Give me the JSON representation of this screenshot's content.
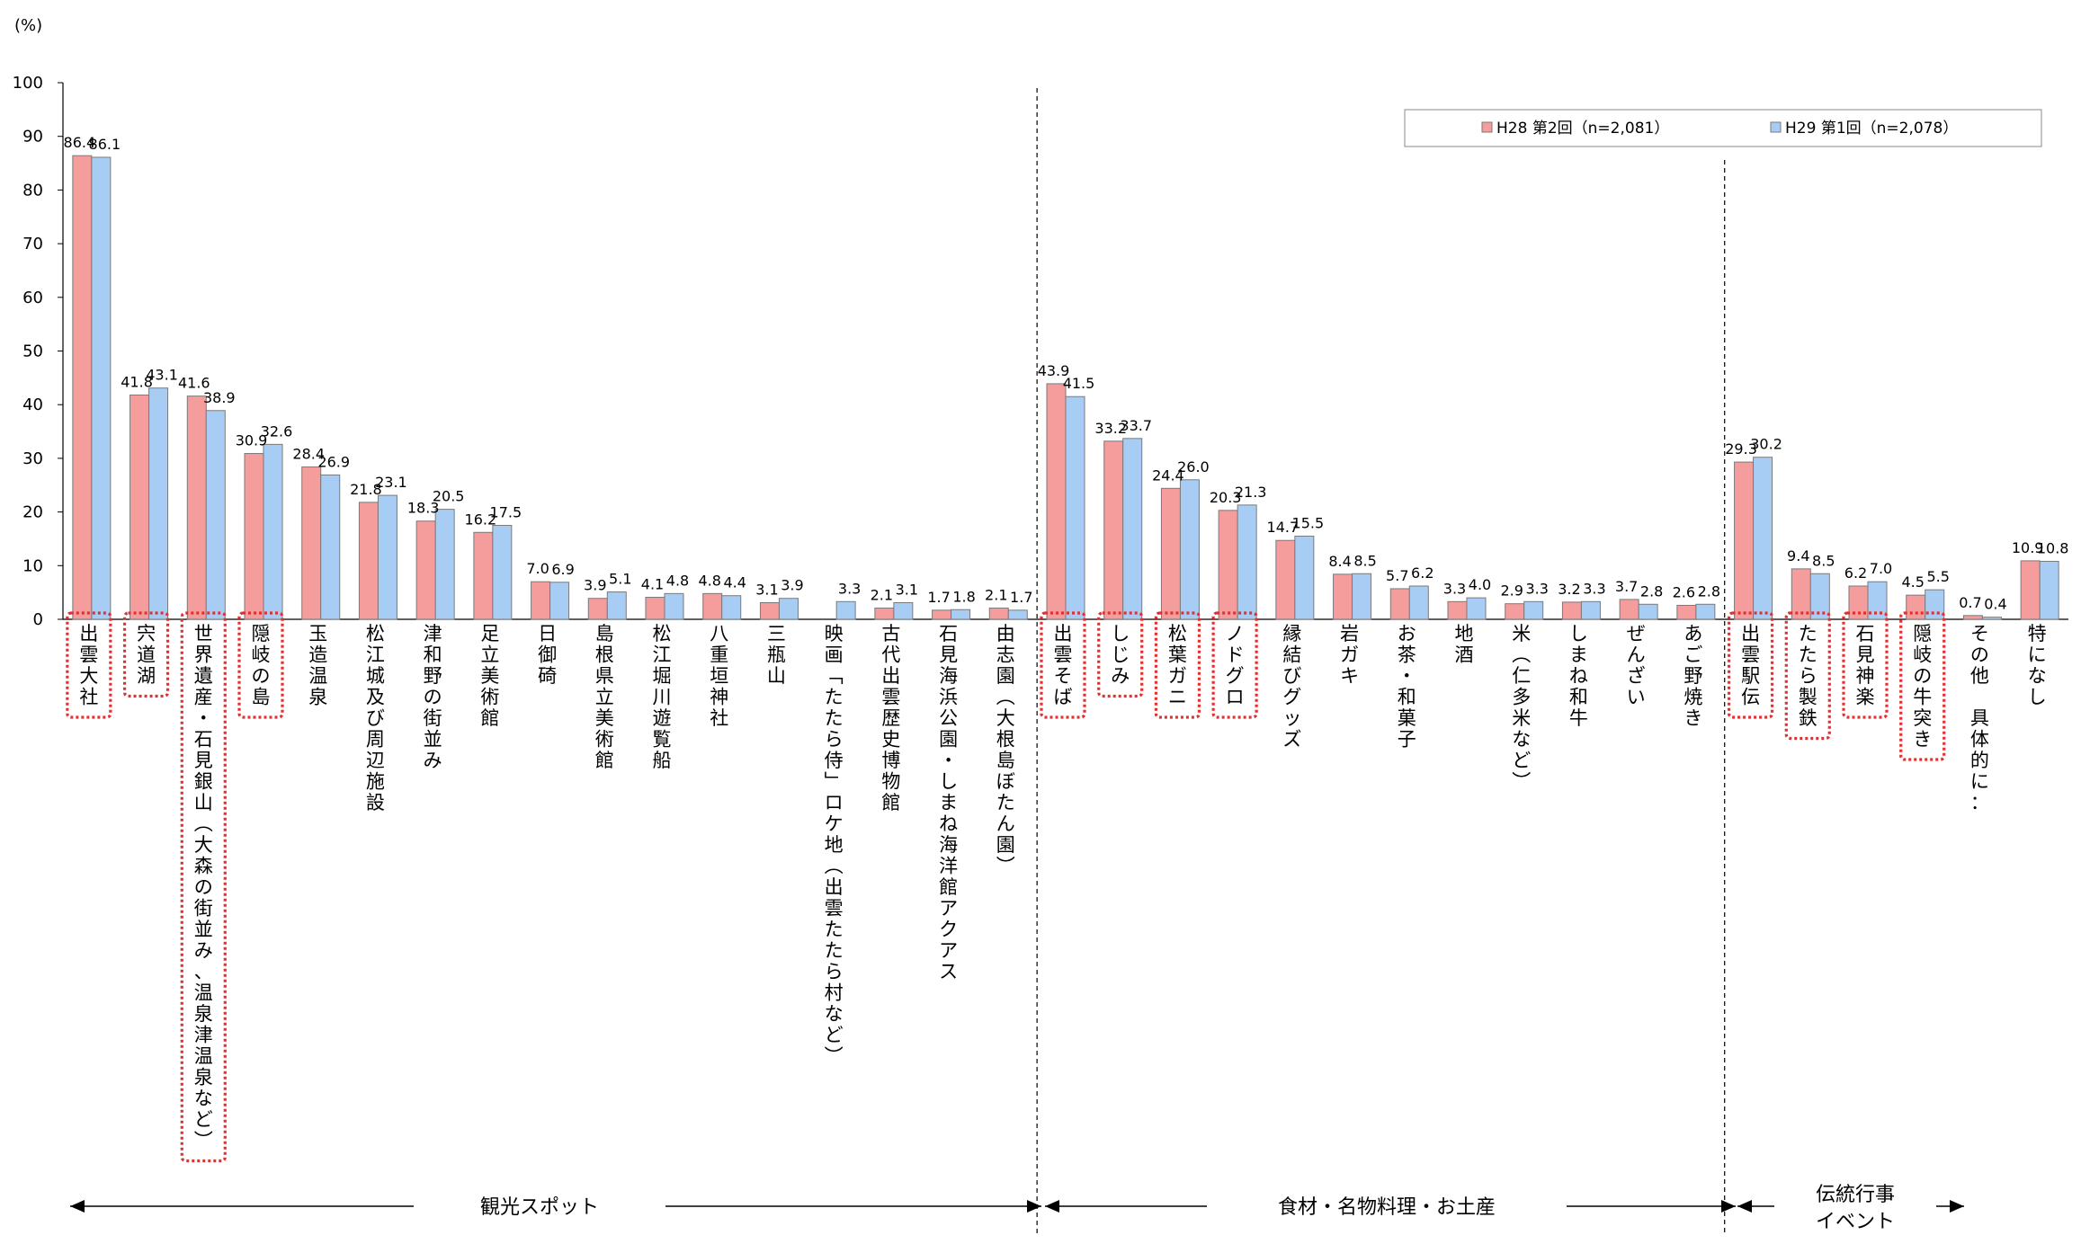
{
  "chart_data": {
    "type": "bar",
    "y_unit": "(%)",
    "ylim": [
      0,
      100
    ],
    "yticks": [
      0,
      10,
      20,
      30,
      40,
      50,
      60,
      70,
      80,
      90,
      100
    ],
    "grid": false,
    "legend_position": "top-right",
    "categories": [
      "出雲大社",
      "宍道湖",
      "世界遺産・石見銀山︵大森の街並み、温泉津温泉など︶",
      "隠岐の島",
      "玉造温泉",
      "松江城及び周辺施設",
      "津和野の街並み",
      "足立美術館",
      "日御碕",
      "島根県立美術館",
      "松江堀川遊覧船",
      "八重垣神社",
      "三瓶山",
      "映画﹁たたら侍﹂ロケ地︵出雲たたら村など︶",
      "古代出雲歴史博物館",
      "石見海浜公園・しまね海洋館アクアス",
      "由志園︵大根島ぼたん園︶",
      "出雲そば",
      "しじみ",
      "松葉ガニ",
      "ノドグロ",
      "縁結びグッズ",
      "岩ガキ",
      "お茶・和菓子",
      "地酒",
      "米︵仁多米など︶",
      "しまね和牛",
      "ぜんざい",
      "あご野焼き",
      "出雲駅伝",
      "たたら製鉄",
      "石見神楽",
      "隠岐の牛突き",
      "その他　具体的に：",
      "特になし"
    ],
    "series": [
      {
        "name": "H28 第2回（n=2,081）",
        "color": "#f59c9c",
        "values": [
          86.4,
          41.8,
          41.6,
          30.9,
          28.4,
          21.8,
          18.3,
          16.2,
          7.0,
          3.9,
          4.1,
          4.8,
          3.1,
          null,
          2.1,
          1.7,
          2.1,
          43.9,
          33.2,
          24.4,
          20.3,
          14.7,
          8.4,
          5.7,
          3.3,
          2.9,
          3.2,
          3.7,
          2.6,
          29.3,
          9.4,
          6.2,
          4.5,
          0.7,
          10.9
        ],
        "labels": [
          "86.4",
          "41.8",
          "41.6",
          "30.9",
          "28.4",
          "21.8",
          "18.3",
          "16.2",
          "7.0",
          "3.9",
          "4.1",
          "4.8",
          "3.1",
          "",
          "2.1",
          "1.7",
          "2.1",
          "43.9",
          "33.2",
          "24.4",
          "20.3",
          "14.7",
          "8.4",
          "5.7",
          "3.3",
          "2.9",
          "3.2",
          "3.7",
          "2.6",
          "29.3",
          "9.4",
          "6.2",
          "4.5",
          "0.7",
          "10.9"
        ]
      },
      {
        "name": "H29 第1回（n=2,078）",
        "color": "#a8cdf5",
        "values": [
          86.1,
          43.1,
          38.9,
          32.6,
          26.9,
          23.1,
          20.5,
          17.5,
          6.9,
          5.1,
          4.8,
          4.4,
          3.9,
          3.3,
          3.1,
          1.8,
          1.7,
          41.5,
          33.7,
          26.0,
          21.3,
          15.5,
          8.5,
          6.2,
          4.0,
          3.3,
          3.3,
          2.8,
          2.8,
          30.2,
          8.5,
          7.0,
          5.5,
          0.4,
          10.8
        ],
        "labels": [
          "86.1",
          "43.1",
          "38.9",
          "32.6",
          "26.9",
          "23.1",
          "20.5",
          "17.5",
          "6.9",
          "5.1",
          "4.8",
          "4.4",
          "3.9",
          "3.3",
          "3.1",
          "1.8",
          "1.7",
          "41.5",
          "33.7",
          "26.0",
          "21.3",
          "15.5",
          "8.5",
          "6.2",
          "4.0",
          "3.3",
          "3.3",
          "2.8",
          "2.8",
          "30.2",
          "8.5",
          "7.0",
          "5.5",
          "0.4",
          "10.8"
        ]
      }
    ],
    "highlighted_categories": [
      0,
      1,
      2,
      3,
      17,
      18,
      19,
      20,
      29,
      30,
      31,
      32
    ],
    "highlight_color": "#e03030",
    "sections": [
      {
        "label": "観光スポット",
        "first": 0,
        "last": 16
      },
      {
        "label": "食材・名物料理・お土産",
        "first": 17,
        "last": 28
      },
      {
        "label": "伝統行事\nイベント",
        "first": 29,
        "last": 34
      }
    ]
  }
}
